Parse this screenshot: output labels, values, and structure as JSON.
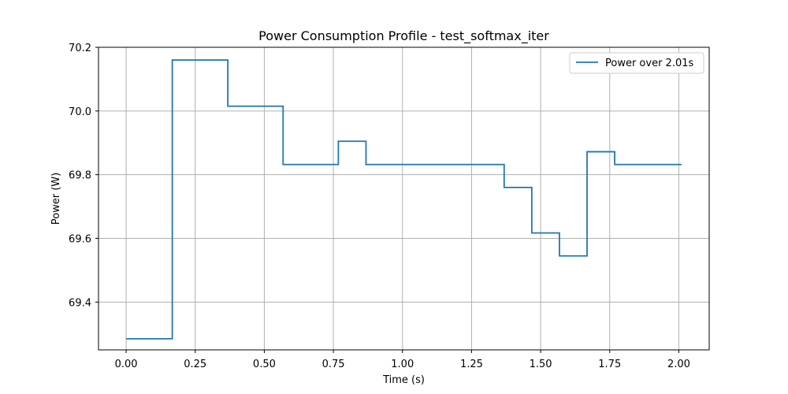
{
  "chart_data": {
    "type": "line",
    "title": "Power Consumption Profile - test_softmax_iter",
    "xlabel": "Time (s)",
    "ylabel": "Power (W)",
    "xlim": [
      -0.1,
      2.11
    ],
    "ylim": [
      69.25,
      70.2
    ],
    "xticks": [
      0.0,
      0.25,
      0.5,
      0.75,
      1.0,
      1.25,
      1.5,
      1.75,
      2.0
    ],
    "xtick_labels": [
      "0.00",
      "0.25",
      "0.50",
      "0.75",
      "1.00",
      "1.25",
      "1.50",
      "1.75",
      "2.00"
    ],
    "yticks": [
      69.4,
      69.6,
      69.8,
      70.0,
      70.2
    ],
    "ytick_labels": [
      "69.4",
      "69.6",
      "69.8",
      "70.0",
      "70.2"
    ],
    "grid": true,
    "legend_position": "top-right",
    "series": [
      {
        "name": "Power over 2.01s",
        "color": "#1f77b4",
        "step": true,
        "x": [
          0.0,
          0.167,
          0.368,
          0.568,
          0.768,
          0.868,
          1.368,
          1.468,
          1.568,
          1.668,
          1.768,
          2.01
        ],
        "y": [
          69.285,
          70.16,
          70.015,
          69.832,
          69.905,
          69.832,
          69.76,
          69.617,
          69.545,
          69.872,
          69.832,
          69.832
        ]
      }
    ]
  }
}
